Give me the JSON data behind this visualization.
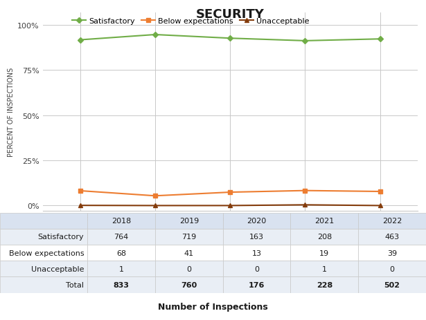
{
  "title": "SECURITY",
  "years": [
    2018,
    2019,
    2020,
    2021,
    2022
  ],
  "satisfactory_pct": [
    91.7,
    94.6,
    92.6,
    91.2,
    92.2
  ],
  "below_pct": [
    8.2,
    5.4,
    7.4,
    8.3,
    7.8
  ],
  "unacceptable_pct": [
    0.1,
    0.0,
    0.0,
    0.4,
    0.0
  ],
  "satisfactory_color": "#70ad47",
  "below_color": "#ed7d31",
  "unacceptable_color": "#843c0c",
  "ylabel": "PERCENT OF INSPECTIONS",
  "yticks": [
    0,
    25,
    50,
    75,
    100
  ],
  "ytick_labels": [
    "0%",
    "25%",
    "50%",
    "75%",
    "100%"
  ],
  "table_rows": [
    "Satisfactory",
    "Below expectations",
    "Unacceptable",
    "Total"
  ],
  "table_data": [
    [
      764,
      719,
      163,
      208,
      463
    ],
    [
      68,
      41,
      13,
      19,
      39
    ],
    [
      1,
      0,
      0,
      1,
      0
    ],
    [
      833,
      760,
      176,
      228,
      502
    ]
  ],
  "table_title": "Number of Inspections",
  "background_color": "#ffffff",
  "table_header_bg": "#d9e2f0",
  "table_row_bg_odd": "#e9eef5",
  "table_row_bg_even": "#ffffff",
  "table_total_bg": "#e9eef5",
  "footer_bg": "#808080",
  "grid_color": "#c8c8c8",
  "text_color": "#404040"
}
